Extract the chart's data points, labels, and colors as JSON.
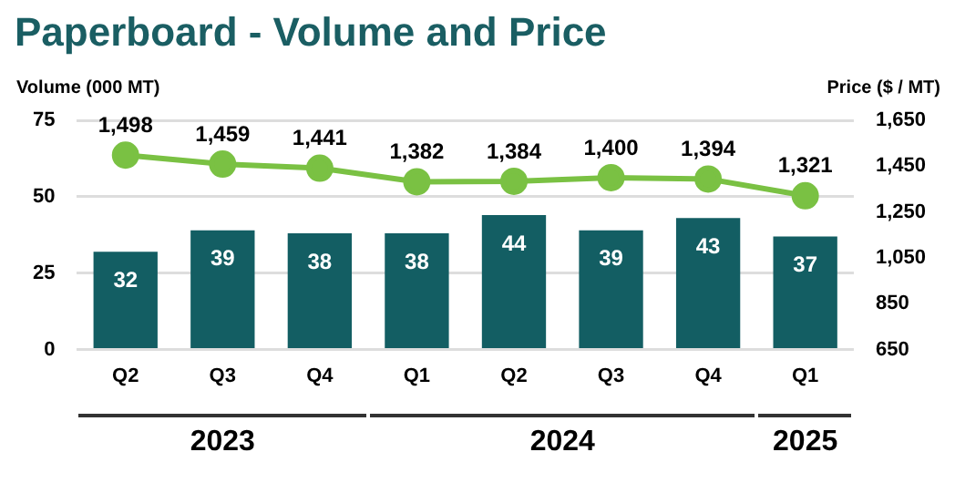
{
  "chart_data": {
    "type": "bar",
    "title": "Paperboard - Volume and Price",
    "ylabel": "Volume (000 MT)",
    "y2label": "Price ($ / MT)",
    "categories": [
      "Q2",
      "Q3",
      "Q4",
      "Q1",
      "Q2",
      "Q3",
      "Q4",
      "Q1"
    ],
    "series": [
      {
        "color": "#135e63",
        "values": [
          32,
          39,
          38,
          38,
          44,
          39,
          43,
          37
        ],
        "value_labels": [
          "32",
          "39",
          "38",
          "38",
          "44",
          "39",
          "43",
          "37"
        ]
      },
      {
        "type": "line",
        "axis": "y2",
        "color": "#7ac143",
        "marker": "circle",
        "values": [
          1498,
          1459,
          1441,
          1382,
          1384,
          1400,
          1394,
          1321
        ],
        "value_labels": [
          "1,498",
          "1,459",
          "1,441",
          "1,382",
          "1,384",
          "1,400",
          "1,394",
          "1,321"
        ]
      }
    ],
    "ylim": [
      0,
      75
    ],
    "yticks": [
      0,
      25,
      50,
      75
    ],
    "y2lim": [
      650,
      1650
    ],
    "y2ticks": [
      650,
      850,
      {
        "value": 1050,
        "label": "1,050"
      },
      {
        "value": 1250,
        "label": "1,250"
      },
      {
        "value": 1450,
        "label": "1,450"
      },
      {
        "value": 1650,
        "label": "1,650"
      }
    ],
    "grid": "y",
    "legend": false,
    "annotations": [
      "2023",
      "2024",
      "2025"
    ]
  }
}
